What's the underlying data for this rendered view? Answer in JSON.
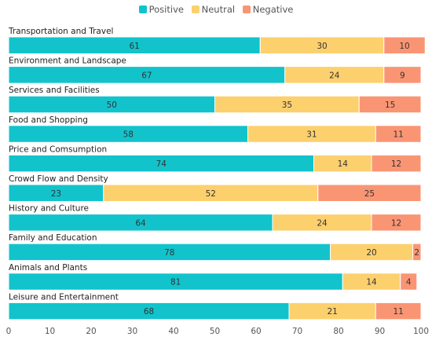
{
  "chart_data": {
    "type": "bar",
    "orientation": "horizontal",
    "stacked": true,
    "categories": [
      "Transportation and Travel",
      "Environment and Landscape",
      "Services and Facilities",
      "Food and Shopping",
      "Price and Comsumption",
      "Crowd Flow and Density",
      "History and Culture",
      "Family and Education",
      "Animals and Plants",
      "Leisure and Entertainment"
    ],
    "series": [
      {
        "name": "Positive",
        "color": "#12c3cc",
        "values": [
          61,
          67,
          50,
          58,
          74,
          23,
          64,
          78,
          81,
          68
        ]
      },
      {
        "name": "Neutral",
        "color": "#fdd06e",
        "values": [
          30,
          24,
          35,
          31,
          14,
          52,
          24,
          20,
          14,
          21
        ]
      },
      {
        "name": "Negative",
        "color": "#fa9574",
        "values": [
          10,
          9,
          15,
          11,
          12,
          25,
          12,
          2,
          4,
          11
        ]
      }
    ],
    "xlim": [
      0,
      100
    ],
    "xticks": [
      "0",
      "10",
      "20",
      "30",
      "40",
      "50",
      "60",
      "70",
      "80",
      "90",
      "100"
    ],
    "legend_position": "top-center",
    "grid": false
  }
}
